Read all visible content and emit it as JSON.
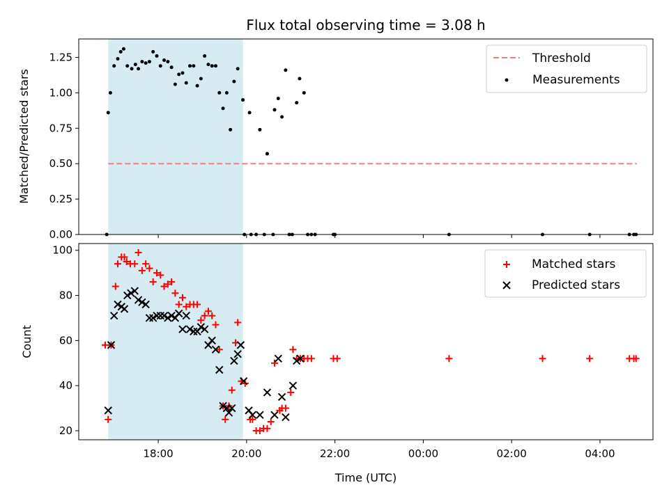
{
  "chart_data": [
    {
      "type": "scatter",
      "title": "Flux total observing time = 3.08 h",
      "ylabel": "Matched/Predicted stars",
      "xlim": [
        "16:12",
        "05:12"
      ],
      "ylim": [
        0,
        1.38
      ],
      "yticks": [
        "0.00",
        "0.25",
        "0.50",
        "0.75",
        "1.00",
        "1.25"
      ],
      "shaded_span": [
        "16:52",
        "19:55"
      ],
      "shade_color": "#add8e6",
      "threshold": {
        "name": "Threshold",
        "y": 0.5,
        "x": [
          "16:52",
          "04:50"
        ],
        "color": "#f08080"
      },
      "series": [
        {
          "name": "Measurements",
          "marker": "dot",
          "color": "#000000",
          "points": [
            [
              "16:50",
              0.0
            ],
            [
              "16:52",
              0.86
            ],
            [
              "16:55",
              1.0
            ],
            [
              "17:00",
              1.19
            ],
            [
              "17:05",
              1.24
            ],
            [
              "17:09",
              1.29
            ],
            [
              "17:13",
              1.31
            ],
            [
              "17:18",
              1.19
            ],
            [
              "17:24",
              1.17
            ],
            [
              "17:29",
              1.2
            ],
            [
              "17:33",
              1.17
            ],
            [
              "17:38",
              1.22
            ],
            [
              "17:43",
              1.21
            ],
            [
              "17:48",
              1.22
            ],
            [
              "17:53",
              1.29
            ],
            [
              "17:58",
              1.26
            ],
            [
              "18:03",
              1.19
            ],
            [
              "18:08",
              1.23
            ],
            [
              "18:13",
              1.22
            ],
            [
              "18:18",
              1.18
            ],
            [
              "18:23",
              1.06
            ],
            [
              "18:28",
              1.13
            ],
            [
              "18:33",
              1.14
            ],
            [
              "18:38",
              1.07
            ],
            [
              "18:43",
              1.19
            ],
            [
              "18:48",
              1.19
            ],
            [
              "18:53",
              1.05
            ],
            [
              "18:58",
              1.1
            ],
            [
              "19:03",
              1.26
            ],
            [
              "19:08",
              1.2
            ],
            [
              "19:13",
              1.19
            ],
            [
              "19:18",
              1.19
            ],
            [
              "19:23",
              1.0
            ],
            [
              "19:28",
              0.89
            ],
            [
              "19:33",
              1.0
            ],
            [
              "19:38",
              0.74
            ],
            [
              "19:43",
              1.08
            ],
            [
              "19:48",
              1.17
            ],
            [
              "19:55",
              0.95
            ],
            [
              "19:57",
              0.0
            ],
            [
              "20:04",
              0.86
            ],
            [
              "20:06",
              0.0
            ],
            [
              "20:13",
              0.0
            ],
            [
              "20:18",
              0.74
            ],
            [
              "20:24",
              0.0
            ],
            [
              "20:28",
              0.57
            ],
            [
              "20:36",
              0.0
            ],
            [
              "20:38",
              0.88
            ],
            [
              "20:43",
              0.96
            ],
            [
              "20:48",
              0.83
            ],
            [
              "20:53",
              1.16
            ],
            [
              "20:58",
              0.0
            ],
            [
              "21:02",
              0.0
            ],
            [
              "21:08",
              0.93
            ],
            [
              "21:12",
              1.1
            ],
            [
              "21:18",
              1.0
            ],
            [
              "21:23",
              0.0
            ],
            [
              "21:28",
              0.0
            ],
            [
              "21:33",
              0.0
            ],
            [
              "21:58",
              0.0
            ],
            [
              "22:00",
              0.0
            ],
            [
              "00:35",
              0.0
            ],
            [
              "02:42",
              0.0
            ],
            [
              "03:46",
              0.0
            ],
            [
              "04:40",
              0.0
            ],
            [
              "04:46",
              0.0
            ],
            [
              "04:49",
              0.0
            ]
          ]
        }
      ],
      "legend": "top-right"
    },
    {
      "type": "scatter",
      "xlabel": "Time (UTC)",
      "ylabel": "Count",
      "xlim": [
        "16:12",
        "05:12"
      ],
      "ylim": [
        16,
        103
      ],
      "xticks": [
        "18:00",
        "20:00",
        "22:00",
        "00:00",
        "02:00",
        "04:00"
      ],
      "yticks": [
        "20",
        "40",
        "60",
        "80",
        "100"
      ],
      "shaded_span": [
        "16:52",
        "19:55"
      ],
      "series": [
        {
          "name": "Matched stars",
          "marker": "plus",
          "color": "#ff0000",
          "points": [
            [
              "16:48",
              58
            ],
            [
              "16:52",
              25
            ],
            [
              "16:56",
              58
            ],
            [
              "17:02",
              84
            ],
            [
              "17:05",
              94
            ],
            [
              "17:10",
              97
            ],
            [
              "17:14",
              97
            ],
            [
              "17:17",
              95
            ],
            [
              "17:22",
              94
            ],
            [
              "17:28",
              94
            ],
            [
              "17:33",
              99
            ],
            [
              "17:38",
              91
            ],
            [
              "17:43",
              94
            ],
            [
              "17:48",
              92
            ],
            [
              "17:53",
              86
            ],
            [
              "17:58",
              90
            ],
            [
              "18:03",
              89
            ],
            [
              "18:08",
              84
            ],
            [
              "18:13",
              85
            ],
            [
              "18:18",
              86
            ],
            [
              "18:23",
              81
            ],
            [
              "18:28",
              76
            ],
            [
              "18:33",
              79
            ],
            [
              "18:38",
              75
            ],
            [
              "18:43",
              76
            ],
            [
              "18:48",
              76
            ],
            [
              "18:53",
              76
            ],
            [
              "18:58",
              69
            ],
            [
              "19:03",
              71
            ],
            [
              "19:08",
              73
            ],
            [
              "19:13",
              71
            ],
            [
              "19:18",
              67
            ],
            [
              "19:23",
              56
            ],
            [
              "19:28",
              31
            ],
            [
              "19:31",
              25
            ],
            [
              "19:36",
              31
            ],
            [
              "19:40",
              38
            ],
            [
              "19:45",
              59
            ],
            [
              "19:48",
              68
            ],
            [
              "19:53",
              42
            ],
            [
              "19:58",
              41
            ],
            [
              "20:05",
              25
            ],
            [
              "20:08",
              25
            ],
            [
              "20:13",
              20
            ],
            [
              "20:18",
              20
            ],
            [
              "20:23",
              21
            ],
            [
              "20:28",
              21
            ],
            [
              "20:33",
              24
            ],
            [
              "20:38",
              50
            ],
            [
              "20:45",
              29
            ],
            [
              "20:48",
              30
            ],
            [
              "20:53",
              30
            ],
            [
              "21:00",
              37
            ],
            [
              "21:03",
              56
            ],
            [
              "21:08",
              52
            ],
            [
              "21:13",
              52
            ],
            [
              "21:18",
              52
            ],
            [
              "21:23",
              52
            ],
            [
              "21:28",
              52
            ],
            [
              "21:58",
              52
            ],
            [
              "22:03",
              52
            ],
            [
              "00:35",
              52
            ],
            [
              "02:42",
              52
            ],
            [
              "03:46",
              52
            ],
            [
              "04:40",
              52
            ],
            [
              "04:46",
              52
            ],
            [
              "04:49",
              52
            ]
          ]
        },
        {
          "name": "Predicted stars",
          "marker": "x",
          "color": "#000000",
          "points": [
            [
              "16:52",
              29
            ],
            [
              "16:56",
              58
            ],
            [
              "17:00",
              71
            ],
            [
              "17:05",
              76
            ],
            [
              "17:10",
              75
            ],
            [
              "17:14",
              74
            ],
            [
              "17:18",
              80
            ],
            [
              "17:23",
              81
            ],
            [
              "17:28",
              82
            ],
            [
              "17:33",
              78
            ],
            [
              "17:38",
              77
            ],
            [
              "17:43",
              76
            ],
            [
              "17:48",
              70
            ],
            [
              "17:53",
              70
            ],
            [
              "17:58",
              71
            ],
            [
              "18:03",
              71
            ],
            [
              "18:08",
              71
            ],
            [
              "18:13",
              70
            ],
            [
              "18:18",
              71
            ],
            [
              "18:23",
              70
            ],
            [
              "18:28",
              72
            ],
            [
              "18:33",
              65
            ],
            [
              "18:38",
              71
            ],
            [
              "18:43",
              65
            ],
            [
              "18:48",
              64
            ],
            [
              "18:53",
              64
            ],
            [
              "18:58",
              66
            ],
            [
              "19:03",
              65
            ],
            [
              "19:08",
              58
            ],
            [
              "19:13",
              60
            ],
            [
              "19:18",
              56
            ],
            [
              "19:23",
              47
            ],
            [
              "19:28",
              31
            ],
            [
              "19:33",
              30
            ],
            [
              "19:36",
              28
            ],
            [
              "19:40",
              30
            ],
            [
              "19:43",
              51
            ],
            [
              "19:48",
              54
            ],
            [
              "19:52",
              58
            ],
            [
              "19:56",
              42
            ],
            [
              "20:03",
              29
            ],
            [
              "20:08",
              27
            ],
            [
              "20:18",
              27
            ],
            [
              "20:28",
              37
            ],
            [
              "20:38",
              27
            ],
            [
              "20:43",
              52
            ],
            [
              "20:48",
              35
            ],
            [
              "20:53",
              26
            ],
            [
              "21:03",
              40
            ],
            [
              "21:08",
              51
            ],
            [
              "21:13",
              52
            ]
          ]
        }
      ],
      "legend": "top-right"
    }
  ]
}
